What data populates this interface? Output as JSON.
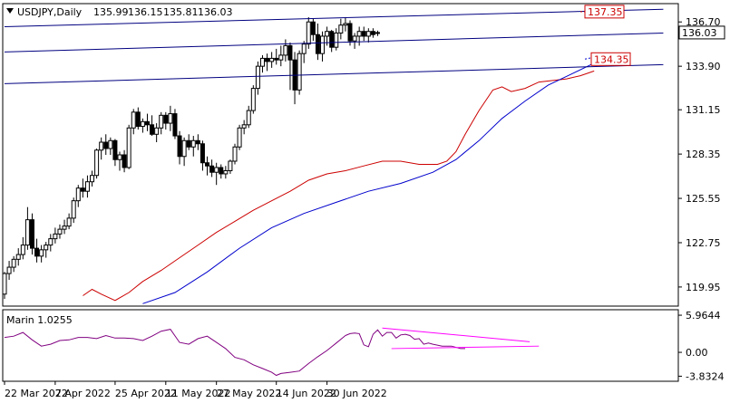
{
  "chart_data": [
    {
      "type": "candlestick",
      "title": "USDJPY,Daily",
      "ohlc_header": [
        "135.99",
        "136.15",
        "135.81",
        "136.03"
      ],
      "ylim": [
        118.8,
        137.8
      ],
      "y_ticks": [
        "136.70",
        "133.90",
        "131.15",
        "128.35",
        "125.55",
        "122.75",
        "119.95"
      ],
      "current_price": "136.03",
      "x_ticks": [
        "22 Mar 2022",
        "7 Apr 2022",
        "25 Apr 2022",
        "11 May 2022",
        "27 May 2022",
        "14 Jun 2022",
        "30 Jun 2022"
      ],
      "candles": [
        [
          119.5,
          120.9,
          119.2,
          120.8
        ],
        [
          120.8,
          121.6,
          120.4,
          121.2
        ],
        [
          121.2,
          121.9,
          120.9,
          121.7
        ],
        [
          121.7,
          122.4,
          121.3,
          122.0
        ],
        [
          122.0,
          123.1,
          121.7,
          122.6
        ],
        [
          122.6,
          125.0,
          122.3,
          124.2
        ],
        [
          124.2,
          124.6,
          122.0,
          122.4
        ],
        [
          122.4,
          123.0,
          121.5,
          121.9
        ],
        [
          121.9,
          122.6,
          121.5,
          122.3
        ],
        [
          122.3,
          122.8,
          121.8,
          122.6
        ],
        [
          122.6,
          123.3,
          122.2,
          123.0
        ],
        [
          123.0,
          123.7,
          122.7,
          123.3
        ],
        [
          123.3,
          123.9,
          123.0,
          123.6
        ],
        [
          123.6,
          124.2,
          123.3,
          123.8
        ],
        [
          123.8,
          124.6,
          123.6,
          124.3
        ],
        [
          124.3,
          125.6,
          124.0,
          125.4
        ],
        [
          125.4,
          126.4,
          125.0,
          126.2
        ],
        [
          126.2,
          126.8,
          125.6,
          126.0
        ],
        [
          126.0,
          127.0,
          125.6,
          126.6
        ],
        [
          126.6,
          127.3,
          126.3,
          127.0
        ],
        [
          127.0,
          128.7,
          126.8,
          128.6
        ],
        [
          128.6,
          129.4,
          128.0,
          129.1
        ],
        [
          129.1,
          129.6,
          128.3,
          128.7
        ],
        [
          128.7,
          129.4,
          128.3,
          129.2
        ],
        [
          129.2,
          129.3,
          127.6,
          128.0
        ],
        [
          128.0,
          128.5,
          127.3,
          128.3
        ],
        [
          128.3,
          128.6,
          127.2,
          127.5
        ],
        [
          127.5,
          130.2,
          127.4,
          130.0
        ],
        [
          130.0,
          131.2,
          129.6,
          131.0
        ],
        [
          131.0,
          131.3,
          129.9,
          130.1
        ],
        [
          130.1,
          130.6,
          129.7,
          130.4
        ],
        [
          130.4,
          130.9,
          129.8,
          130.2
        ],
        [
          130.2,
          130.8,
          129.5,
          129.6
        ],
        [
          129.6,
          130.3,
          129.1,
          130.0
        ],
        [
          130.0,
          131.0,
          129.6,
          130.8
        ],
        [
          130.8,
          131.0,
          129.9,
          130.3
        ],
        [
          130.3,
          131.4,
          129.8,
          130.9
        ],
        [
          130.9,
          131.2,
          129.3,
          129.5
        ],
        [
          129.5,
          129.8,
          127.7,
          128.2
        ],
        [
          128.2,
          129.4,
          127.6,
          129.2
        ],
        [
          129.2,
          129.6,
          128.6,
          128.8
        ],
        [
          128.8,
          129.5,
          128.2,
          129.2
        ],
        [
          129.2,
          129.6,
          128.6,
          129.0
        ],
        [
          129.0,
          129.2,
          127.3,
          127.8
        ],
        [
          127.8,
          128.2,
          127.0,
          127.6
        ],
        [
          127.6,
          128.0,
          126.9,
          127.2
        ],
        [
          127.2,
          127.8,
          126.4,
          127.5
        ],
        [
          127.5,
          127.7,
          126.8,
          127.1
        ],
        [
          127.1,
          127.6,
          126.8,
          127.3
        ],
        [
          127.3,
          128.0,
          127.1,
          127.9
        ],
        [
          127.9,
          129.0,
          127.7,
          128.8
        ],
        [
          128.8,
          130.2,
          128.6,
          130.0
        ],
        [
          130.0,
          130.5,
          129.6,
          130.2
        ],
        [
          130.2,
          131.4,
          130.0,
          131.1
        ],
        [
          131.1,
          132.7,
          130.9,
          132.5
        ],
        [
          132.5,
          134.2,
          132.1,
          133.9
        ],
        [
          133.9,
          134.6,
          133.5,
          134.4
        ],
        [
          134.4,
          134.7,
          133.6,
          134.2
        ],
        [
          134.2,
          134.8,
          133.8,
          134.4
        ],
        [
          134.4,
          135.0,
          134.0,
          134.3
        ],
        [
          134.3,
          135.2,
          133.9,
          134.6
        ],
        [
          134.6,
          135.6,
          134.2,
          135.2
        ],
        [
          135.2,
          135.4,
          132.4,
          134.3
        ],
        [
          134.3,
          134.8,
          131.5,
          132.4
        ],
        [
          132.4,
          134.9,
          132.1,
          134.7
        ],
        [
          134.7,
          135.5,
          134.1,
          135.3
        ],
        [
          135.3,
          137.0,
          135.0,
          136.7
        ],
        [
          136.7,
          136.9,
          135.5,
          135.9
        ],
        [
          135.9,
          136.6,
          134.3,
          134.7
        ],
        [
          134.7,
          136.1,
          134.2,
          135.8
        ],
        [
          135.8,
          136.4,
          135.2,
          136.1
        ],
        [
          136.1,
          136.2,
          134.8,
          135.1
        ],
        [
          135.1,
          136.3,
          134.9,
          136.0
        ],
        [
          136.0,
          136.9,
          135.6,
          136.5
        ],
        [
          136.5,
          137.0,
          136.1,
          136.6
        ],
        [
          136.6,
          136.8,
          135.2,
          135.5
        ],
        [
          135.5,
          136.0,
          135.0,
          135.8
        ],
        [
          135.8,
          136.4,
          135.2,
          136.1
        ],
        [
          136.1,
          136.4,
          135.5,
          135.8
        ],
        [
          135.8,
          136.3,
          135.4,
          136.1
        ],
        [
          136.1,
          136.3,
          135.7,
          135.9
        ],
        [
          135.99,
          136.15,
          135.81,
          136.03
        ]
      ],
      "series": [
        {
          "name": "",
          "color": "#cc0000",
          "values": [
            [
              17,
              119.4
            ],
            [
              19,
              119.8
            ],
            [
              21,
              119.5
            ],
            [
              24,
              119.1
            ],
            [
              27,
              119.6
            ],
            [
              30,
              120.3
            ],
            [
              34,
              121.0
            ],
            [
              38,
              121.8
            ],
            [
              42,
              122.6
            ],
            [
              46,
              123.4
            ],
            [
              50,
              124.1
            ],
            [
              54,
              124.8
            ],
            [
              58,
              125.4
            ],
            [
              62,
              126.0
            ],
            [
              66,
              126.7
            ],
            [
              70,
              127.1
            ],
            [
              74,
              127.3
            ],
            [
              78,
              127.6
            ],
            [
              82,
              127.9
            ],
            [
              86,
              127.9
            ],
            [
              90,
              127.7
            ],
            [
              94,
              127.7
            ],
            [
              96,
              127.9
            ],
            [
              98,
              128.5
            ],
            [
              100,
              129.6
            ],
            [
              103,
              131.1
            ],
            [
              106,
              132.4
            ],
            [
              108,
              132.6
            ],
            [
              110,
              132.3
            ],
            [
              113,
              132.5
            ],
            [
              116,
              132.9
            ],
            [
              119,
              133.0
            ],
            [
              122,
              133.1
            ],
            [
              125,
              133.3
            ],
            [
              128,
              133.6
            ]
          ]
        },
        {
          "name": "",
          "color": "#0000cc",
          "values": [
            [
              30,
              118.9
            ],
            [
              37,
              119.6
            ],
            [
              44,
              120.9
            ],
            [
              51,
              122.4
            ],
            [
              58,
              123.7
            ],
            [
              65,
              124.6
            ],
            [
              72,
              125.3
            ],
            [
              79,
              126.0
            ],
            [
              86,
              126.5
            ],
            [
              93,
              127.2
            ],
            [
              98,
              128.0
            ],
            [
              103,
              129.2
            ],
            [
              108,
              130.6
            ],
            [
              113,
              131.7
            ],
            [
              118,
              132.7
            ],
            [
              123,
              133.4
            ],
            [
              128,
              134.1
            ],
            [
              131,
              134.5
            ]
          ]
        }
      ],
      "channel_lines": [
        {
          "x": [
            0,
            143
          ],
          "y": [
            136.4,
            137.5
          ]
        },
        {
          "x": [
            0,
            143
          ],
          "y": [
            134.8,
            136.0
          ]
        },
        {
          "x": [
            0,
            143
          ],
          "y": [
            132.8,
            134.0
          ]
        }
      ],
      "level_labels": [
        {
          "value": 137.35,
          "text": "137.35"
        },
        {
          "value": 134.35,
          "text": "134.35"
        }
      ]
    },
    {
      "type": "line",
      "title": "Marin 1.0255",
      "ylim": [
        -4.5,
        6.7
      ],
      "y_ticks": [
        "5.9644",
        "0.00",
        "-3.8324"
      ],
      "series": [
        {
          "name": "",
          "color": "#800080",
          "values": [
            [
              0,
              2.4
            ],
            [
              2,
              2.6
            ],
            [
              4,
              3.2
            ],
            [
              6,
              2.0
            ],
            [
              8,
              1.0
            ],
            [
              10,
              1.3
            ],
            [
              12,
              1.9
            ],
            [
              14,
              2.0
            ],
            [
              16,
              2.4
            ],
            [
              18,
              2.4
            ],
            [
              20,
              2.2
            ],
            [
              22,
              2.7
            ],
            [
              24,
              2.3
            ],
            [
              26,
              2.3
            ],
            [
              28,
              2.2
            ],
            [
              30,
              1.9
            ],
            [
              32,
              2.6
            ],
            [
              34,
              3.4
            ],
            [
              36,
              3.7
            ],
            [
              38,
              1.6
            ],
            [
              40,
              1.3
            ],
            [
              42,
              2.2
            ],
            [
              44,
              2.6
            ],
            [
              46,
              1.6
            ],
            [
              48,
              0.6
            ],
            [
              50,
              -0.8
            ],
            [
              52,
              -1.2
            ],
            [
              54,
              -2.0
            ],
            [
              56,
              -2.6
            ],
            [
              58,
              -3.2
            ],
            [
              59,
              -3.7
            ],
            [
              60,
              -3.4
            ],
            [
              62,
              -3.2
            ],
            [
              64,
              -3.0
            ],
            [
              66,
              -1.8
            ],
            [
              68,
              -0.7
            ],
            [
              70,
              0.3
            ],
            [
              72,
              1.5
            ],
            [
              74,
              2.7
            ],
            [
              75,
              3.0
            ],
            [
              76,
              3.1
            ],
            [
              77,
              3.0
            ],
            [
              78,
              1.2
            ],
            [
              79,
              0.9
            ],
            [
              80,
              2.9
            ],
            [
              81,
              3.6
            ],
            [
              82,
              2.6
            ],
            [
              83,
              3.2
            ],
            [
              84,
              3.2
            ],
            [
              85,
              2.3
            ],
            [
              86,
              2.8
            ],
            [
              87,
              2.9
            ],
            [
              88,
              2.7
            ],
            [
              89,
              2.1
            ],
            [
              90,
              2.2
            ],
            [
              91,
              1.3
            ],
            [
              92,
              1.5
            ],
            [
              93,
              1.3
            ],
            [
              95,
              1.0
            ],
            [
              97,
              1.0
            ],
            [
              99,
              0.6
            ],
            [
              100,
              0.6
            ]
          ]
        }
      ],
      "trend_lines": [
        {
          "x": [
            82,
            114
          ],
          "y": [
            3.9,
            1.7
          ]
        },
        {
          "x": [
            84,
            116
          ],
          "y": [
            0.6,
            1.0
          ]
        }
      ]
    }
  ]
}
